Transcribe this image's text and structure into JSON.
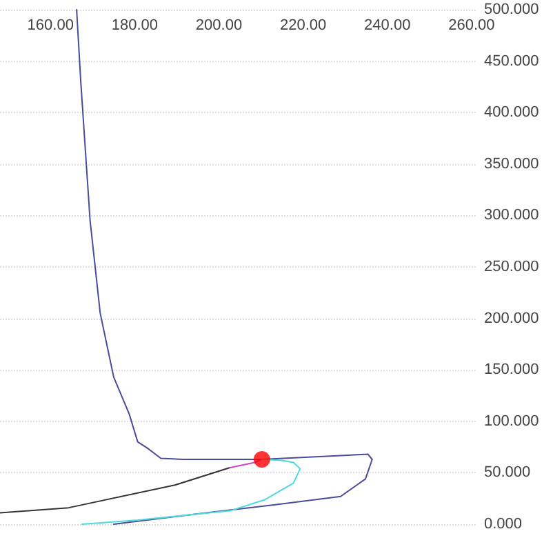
{
  "chart_data": {
    "type": "line",
    "xlim": [
      148,
      261
    ],
    "ylim": [
      0,
      500
    ],
    "xticks": [
      {
        "value": 160,
        "label": "160.00"
      },
      {
        "value": 180,
        "label": "180.00"
      },
      {
        "value": 200,
        "label": "200.00"
      },
      {
        "value": 220,
        "label": "220.00"
      },
      {
        "value": 240,
        "label": "240.00"
      },
      {
        "value": 260,
        "label": "260.00"
      }
    ],
    "yticks": [
      {
        "value": 0,
        "label": "0.000"
      },
      {
        "value": 50,
        "label": "50.000"
      },
      {
        "value": 100,
        "label": "100.000"
      },
      {
        "value": 150,
        "label": "150.000"
      },
      {
        "value": 200,
        "label": "200.000"
      },
      {
        "value": 250,
        "label": "250.000"
      },
      {
        "value": 300,
        "label": "300.000"
      },
      {
        "value": 350,
        "label": "350.000"
      },
      {
        "value": 400,
        "label": "400.000"
      },
      {
        "value": 450,
        "label": "450.000"
      },
      {
        "value": 500,
        "label": "500.000"
      }
    ],
    "grid": "y",
    "series": [
      {
        "color": "#4b4b9b",
        "x": [
          166.2,
          167.2,
          169.4,
          171.8,
          175,
          178.7,
          180.7,
          183,
          186.2,
          191.5,
          210.2,
          235.4,
          236.4,
          234.8,
          228.9,
          213.4,
          197,
          175
        ],
        "values": [
          500,
          429,
          295,
          205,
          143,
          107,
          80,
          74,
          64,
          63,
          63,
          68,
          63,
          44,
          27,
          19,
          11,
          0
        ]
      },
      {
        "color": "#333333",
        "x": [
          148,
          164.3,
          189.5,
          202.6
        ],
        "values": [
          11,
          16,
          38,
          55
        ]
      },
      {
        "color": "#cc44cc",
        "x": [
          202.6,
          208.5,
          210.2
        ],
        "values": [
          55,
          60,
          63
        ]
      },
      {
        "color": "#4dd9e0",
        "x": [
          210.2,
          215,
          217.7,
          219.3,
          217.7,
          211,
          202.6,
          180.7,
          167.5
        ],
        "values": [
          63,
          62,
          60,
          54,
          40,
          24,
          13,
          4,
          0
        ]
      },
      {
        "type": "scatter",
        "marker": "circle",
        "color": "#ff0000",
        "x": [
          210.2
        ],
        "values": [
          63
        ]
      }
    ]
  }
}
